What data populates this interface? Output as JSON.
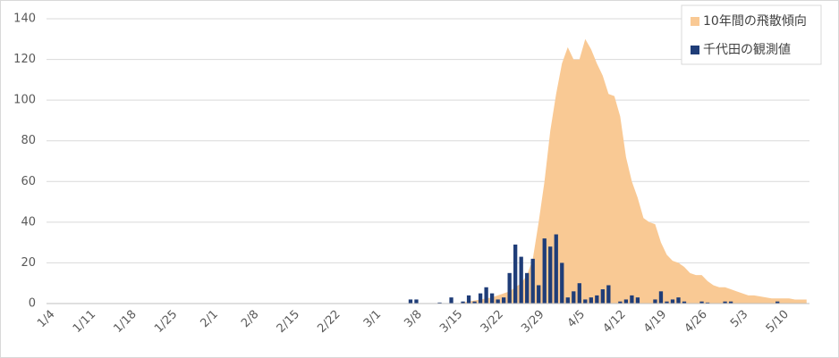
{
  "chart_data": {
    "type": "area_bar",
    "categories": [
      "1/4",
      null,
      null,
      null,
      null,
      null,
      null,
      "1/11",
      null,
      null,
      null,
      null,
      null,
      null,
      "1/18",
      null,
      null,
      null,
      null,
      null,
      null,
      "1/25",
      null,
      null,
      null,
      null,
      null,
      null,
      "2/1",
      null,
      null,
      null,
      null,
      null,
      null,
      "2/8",
      null,
      null,
      null,
      null,
      null,
      null,
      "2/15",
      null,
      null,
      null,
      null,
      null,
      null,
      "2/22",
      null,
      null,
      null,
      null,
      null,
      null,
      "3/1",
      null,
      null,
      null,
      null,
      null,
      null,
      "3/8",
      null,
      null,
      null,
      null,
      null,
      null,
      "3/15",
      null,
      null,
      null,
      null,
      null,
      null,
      "3/22",
      null,
      null,
      null,
      null,
      null,
      null,
      "3/29",
      null,
      null,
      null,
      null,
      null,
      null,
      "4/5",
      null,
      null,
      null,
      null,
      null,
      null,
      "4/12",
      null,
      null,
      null,
      null,
      null,
      null,
      "4/19",
      null,
      null,
      null,
      null,
      null,
      null,
      "4/26",
      null,
      null,
      null,
      null,
      null,
      null,
      "5/3",
      null,
      null,
      null,
      null,
      null,
      null,
      "5/10",
      null,
      null,
      null,
      null
    ],
    "series": [
      {
        "name": "10年間の飛散傾向",
        "color": "#f9c994",
        "kind": "area",
        "values": [
          0,
          0,
          0,
          0,
          0,
          0,
          0,
          0,
          0,
          0,
          0,
          0,
          0,
          0,
          0,
          0,
          0,
          0,
          0,
          0,
          0,
          0,
          0,
          0,
          0,
          0,
          0,
          0,
          0,
          0,
          0,
          0,
          0,
          0,
          0,
          0,
          0,
          0,
          0,
          0,
          0,
          0,
          0,
          0,
          0,
          0,
          0,
          0,
          0,
          0,
          0,
          0,
          0,
          0,
          0,
          0,
          0,
          0,
          0,
          0,
          0,
          0,
          0,
          0,
          0,
          0,
          0,
          0,
          0,
          0,
          0,
          0.5,
          1,
          1.5,
          2,
          2.5,
          3,
          4,
          5,
          6,
          8,
          10,
          14,
          22,
          40,
          60,
          85,
          103,
          118,
          126,
          120,
          120,
          130,
          125,
          118,
          112,
          103,
          102,
          92,
          72,
          60,
          52,
          42,
          40,
          39,
          30,
          24,
          21,
          20,
          18,
          15,
          14,
          14,
          11,
          9,
          8,
          8,
          7,
          6,
          5,
          4,
          4,
          3.5,
          3,
          2.5,
          2.5,
          2.5,
          2.5,
          2,
          2,
          2
        ]
      },
      {
        "name": "千代田の観測値",
        "color": "#1f3d78",
        "kind": "bar",
        "values": [
          0,
          0,
          0,
          0,
          0,
          0,
          0,
          0,
          0,
          0,
          0,
          0,
          0,
          0,
          0,
          0,
          0,
          0,
          0,
          0,
          0,
          0,
          0,
          0,
          0,
          0,
          0,
          0,
          0,
          0,
          0,
          0,
          0,
          0,
          0,
          0,
          0,
          0,
          0,
          0,
          0,
          0,
          0,
          0,
          0,
          0,
          0,
          0,
          0,
          0,
          0,
          0,
          0,
          0,
          0,
          0,
          0,
          0,
          0,
          0,
          0,
          0,
          2,
          2,
          0,
          0,
          0,
          0.5,
          0,
          3,
          0,
          1,
          4,
          1,
          5,
          8,
          5,
          2,
          3,
          15,
          29,
          23,
          15,
          22,
          9,
          32,
          28,
          34,
          20,
          3,
          6,
          10,
          2,
          3,
          4,
          7,
          9,
          0,
          1,
          2,
          4,
          3,
          0,
          0,
          2,
          6,
          1,
          2,
          3,
          1,
          0,
          0,
          1,
          0.5,
          0,
          0,
          1,
          1,
          0,
          0,
          0,
          0,
          0,
          0,
          0,
          1,
          0,
          0,
          0,
          0,
          0
        ]
      }
    ],
    "ylim": [
      0,
      140
    ],
    "yticks": [
      0,
      20,
      40,
      60,
      80,
      100,
      120,
      140
    ],
    "grid": true,
    "legend": "top-right"
  }
}
